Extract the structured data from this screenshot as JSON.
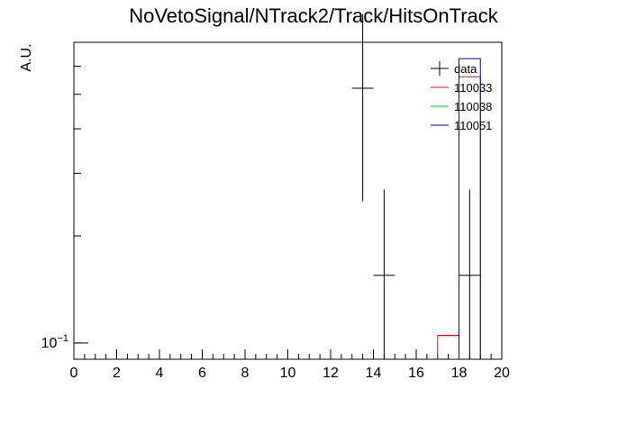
{
  "chart_data": {
    "type": "histogram",
    "title": "NoVetoSignal/NTrack2/Track/HitsOnTrack",
    "xlabel": "",
    "ylabel": "A.U.",
    "xlim": [
      0,
      20
    ],
    "ylim": [
      0.09,
      0.7
    ],
    "yscale": "log",
    "x_ticks": [
      "0",
      "2",
      "4",
      "6",
      "8",
      "10",
      "12",
      "14",
      "16",
      "18",
      "20"
    ],
    "y_tick_label": "10^{-1}",
    "grid": false,
    "legend_position": "top-right",
    "series": [
      {
        "name": "data",
        "color": "#000000",
        "style": "points-with-errors",
        "points": [
          {
            "x": 13.5,
            "y": 0.52,
            "yerr_low": 0.27,
            "yerr_high": 0.32
          },
          {
            "x": 14.5,
            "y": 0.155,
            "yerr_low": 0.155,
            "yerr_high": 0.115
          },
          {
            "x": 18.5,
            "y": 0.155,
            "yerr_low": 0.155,
            "yerr_high": 0.115
          }
        ]
      },
      {
        "name": "110033",
        "color": "#ff0000",
        "style": "step",
        "bins": [
          {
            "lo": 17,
            "hi": 18,
            "y": 0.105
          },
          {
            "lo": 18,
            "hi": 19,
            "y": 0.56
          }
        ]
      },
      {
        "name": "110038",
        "color": "#00cc00",
        "style": "step",
        "bins": []
      },
      {
        "name": "110051",
        "color": "#0000cc",
        "style": "step",
        "bins": [
          {
            "lo": 18,
            "hi": 19,
            "y": 0.63
          }
        ]
      }
    ]
  }
}
